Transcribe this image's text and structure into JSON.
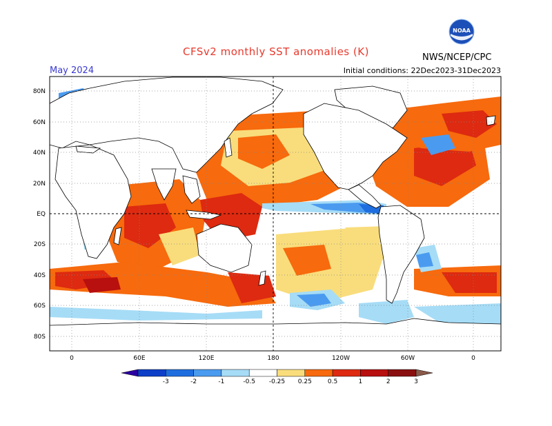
{
  "title": "CFSv2 monthly SST anomalies (K)",
  "organization": "NWS/NCEP/CPC",
  "logo_text": "NOAA",
  "forecast_month": "May 2024",
  "initial_conditions": "Initial conditions: 22Dec2023-31Dec2023",
  "latitude_labels": [
    "80N",
    "60N",
    "40N",
    "20N",
    "EQ",
    "20S",
    "40S",
    "60S",
    "80S"
  ],
  "longitude_labels": [
    "0",
    "60E",
    "120E",
    "180",
    "120W",
    "60W",
    "0"
  ],
  "colorbar": {
    "labels": [
      "-3",
      "-2",
      "-1",
      "-0.5",
      "-0.25",
      "0.25",
      "0.5",
      "1",
      "2",
      "3"
    ],
    "colors": [
      "#2a00a0",
      "#0d3fc9",
      "#1f6ee0",
      "#4a9bf0",
      "#a6dcf6",
      "#ffffff",
      "#f9dd7c",
      "#f76a0d",
      "#dd2a10",
      "#b80f0f",
      "#8a1010",
      "#8a5a4a"
    ]
  },
  "colors": {
    "land": "#ffffff",
    "coast": "#000000",
    "title": "#e8392c",
    "month": "#3a3ad0",
    "noaa_blue": "#1d4fb8"
  }
}
